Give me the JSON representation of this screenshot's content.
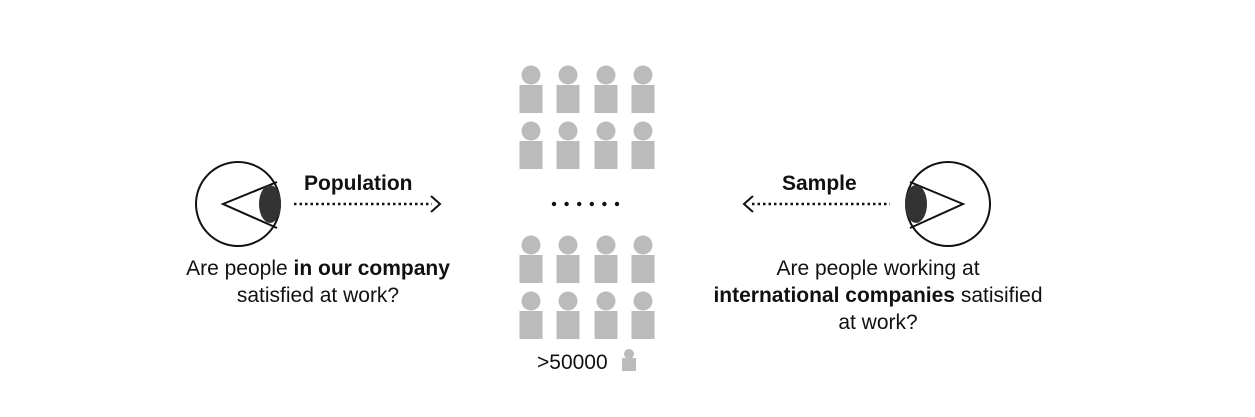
{
  "left": {
    "arrow_label": "Population",
    "question": {
      "pre": "Are people ",
      "bold": "in our company",
      "post": "satisfied at work?"
    }
  },
  "right": {
    "arrow_label": "Sample",
    "question": {
      "line1": "Are people working at",
      "bold": "international companies",
      "post1": " satisified",
      "line3": "at work?"
    }
  },
  "center": {
    "count_label": ">50000",
    "groups": [
      {
        "rows": 2,
        "cols": 4
      },
      {
        "rows": 2,
        "cols": 4
      }
    ],
    "ellipsis_dots": 6
  },
  "colors": {
    "person": "#bbbbbb",
    "pupil": "#333333",
    "stroke": "#111111"
  }
}
